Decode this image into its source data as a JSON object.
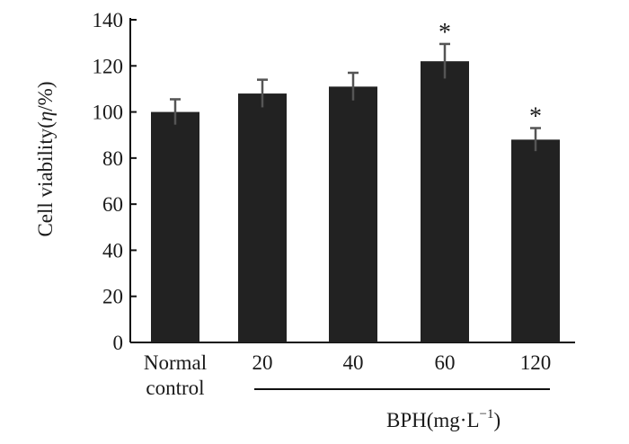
{
  "chart_data": {
    "type": "bar",
    "title": "",
    "ylabel_text": "Cell viability",
    "ylabel_symbol": "η",
    "ylabel_unit": "%",
    "ylim": [
      0,
      140
    ],
    "yticks": [
      0,
      20,
      40,
      60,
      80,
      100,
      120,
      140
    ],
    "categories": [
      "Normal control",
      "20",
      "40",
      "60",
      "120"
    ],
    "category_lines": [
      [
        "Normal",
        "control"
      ],
      [
        "20"
      ],
      [
        "40"
      ],
      [
        "60"
      ],
      [
        "120"
      ]
    ],
    "values": [
      100,
      108,
      111,
      122,
      88
    ],
    "errors": [
      5.5,
      6,
      6,
      7.5,
      5
    ],
    "significance": [
      "",
      "",
      "",
      "*",
      "*"
    ],
    "group_label_text": "BPH(mg·L",
    "group_label_sup": "−1",
    "group_label_close": ")",
    "bar_color": "#222222",
    "axis_color": "#111111",
    "error_color": "#555555"
  }
}
